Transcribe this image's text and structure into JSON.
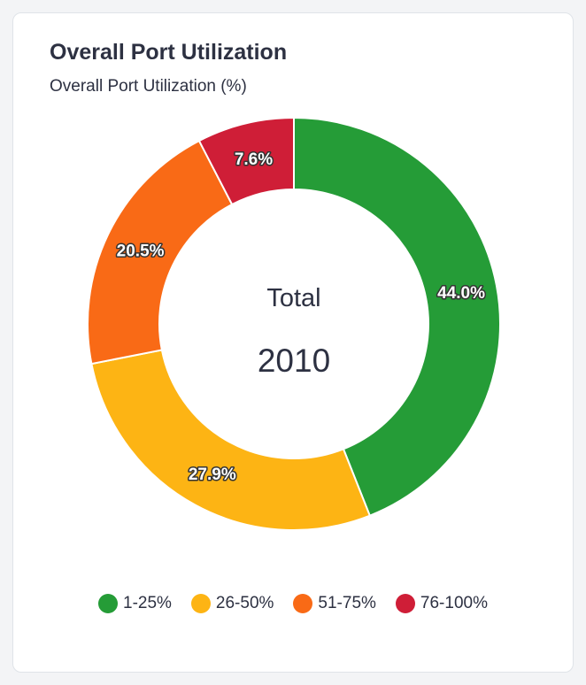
{
  "card": {
    "title": "Overall Port Utilization",
    "subtitle": "Overall Port Utilization (%)"
  },
  "center": {
    "label": "Total",
    "value": "2010"
  },
  "chart_data": {
    "type": "pie",
    "donut": true,
    "title": "Overall Port Utilization",
    "subtitle": "Overall Port Utilization (%)",
    "total": 2010,
    "legend_position": "bottom",
    "categories": [
      "1-25%",
      "26-50%",
      "51-75%",
      "76-100%"
    ],
    "values": [
      44.0,
      27.9,
      20.5,
      7.6
    ],
    "labels": [
      "44.0%",
      "27.9%",
      "20.5%",
      "7.6%"
    ],
    "colors": [
      "#259c37",
      "#fdb414",
      "#f96a16",
      "#cf1e37"
    ]
  }
}
